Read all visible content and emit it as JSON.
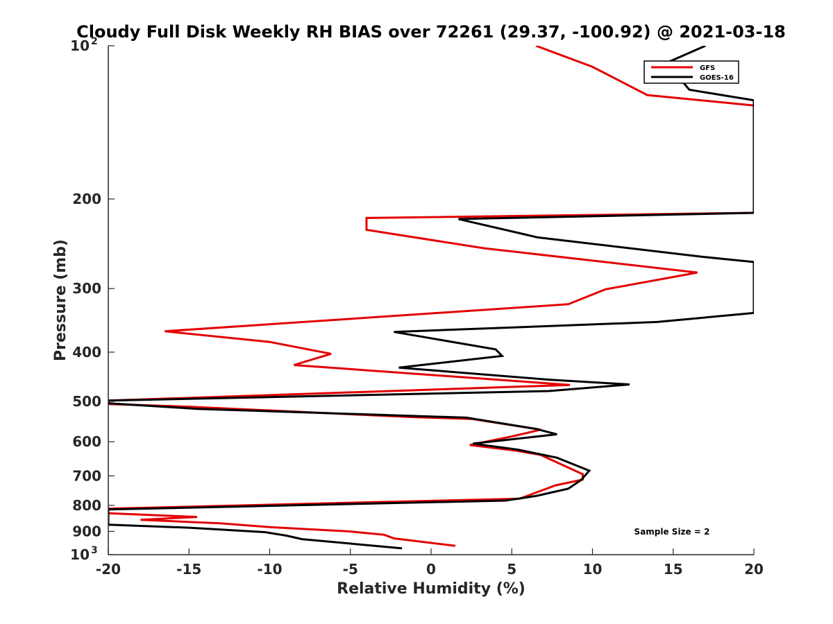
{
  "chart_data": {
    "type": "line",
    "title": "Cloudy Full Disk Weekly RH BIAS over 72261 (29.37, -100.92) @ 2021-03-18",
    "xlabel": "Relative Humidity (%)",
    "ylabel": "Pressure (mb)",
    "xlim": [
      -20,
      20
    ],
    "ylim": [
      100,
      1000
    ],
    "y_scale": "log",
    "y_reversed": true,
    "grid": false,
    "legend_position": "top-right",
    "x_ticks": [
      "-20",
      "-15",
      "-10",
      "-5",
      "0",
      "5",
      "10",
      "15",
      "20"
    ],
    "y_ticks": [
      {
        "value": 100,
        "base": "10",
        "exp": "2"
      },
      {
        "value": 200,
        "label": "200"
      },
      {
        "value": 300,
        "label": "300"
      },
      {
        "value": 400,
        "label": "400"
      },
      {
        "value": 500,
        "label": "500"
      },
      {
        "value": 600,
        "label": "600"
      },
      {
        "value": 700,
        "label": "700"
      },
      {
        "value": 800,
        "label": "800"
      },
      {
        "value": 900,
        "label": "900"
      },
      {
        "value": 1000,
        "base": "10",
        "exp": "3"
      }
    ],
    "annotation": "Sample Size = 2",
    "series": [
      {
        "name": "GFS",
        "color": "#e30000",
        "points": [
          [
            6.5,
            100
          ],
          [
            10,
            110
          ],
          [
            13.4,
            125
          ],
          [
            20,
            131
          ],
          [
            20,
            213
          ],
          [
            -4,
            218
          ],
          [
            -4,
            230
          ],
          [
            3.3,
            250
          ],
          [
            16.5,
            279
          ],
          [
            10.8,
            301
          ],
          [
            8.5,
            322
          ],
          [
            -16.5,
            364
          ],
          [
            -10,
            382
          ],
          [
            -6.2,
            403
          ],
          [
            -8.5,
            424
          ],
          [
            8.6,
            464
          ],
          [
            -20,
            498
          ],
          [
            -20,
            506
          ],
          [
            -15,
            512
          ],
          [
            -1,
            537
          ],
          [
            2.5,
            541
          ],
          [
            6.8,
            568
          ],
          [
            5.2,
            584
          ],
          [
            2.4,
            609
          ],
          [
            5.2,
            624
          ],
          [
            6.8,
            637
          ],
          [
            9.4,
            695
          ],
          [
            9.4,
            712
          ],
          [
            7.7,
            731
          ],
          [
            5.5,
            776
          ],
          [
            -20,
            812
          ],
          [
            -20,
            829
          ],
          [
            -14.5,
            843
          ],
          [
            -18,
            854
          ],
          [
            -13,
            868
          ],
          [
            -10,
            883
          ],
          [
            -5.1,
            900
          ],
          [
            -2.9,
            914
          ],
          [
            -2.3,
            929
          ],
          [
            1.5,
            961
          ]
        ]
      },
      {
        "name": "GOES-16",
        "color": "#000000",
        "points": [
          [
            17,
            100
          ],
          [
            14.6,
            108
          ],
          [
            16,
            122
          ],
          [
            20,
            128
          ],
          [
            20,
            213
          ],
          [
            1.7,
            219
          ],
          [
            6.6,
            238
          ],
          [
            16.9,
            260
          ],
          [
            20,
            266
          ],
          [
            20,
            335
          ],
          [
            14,
            349
          ],
          [
            -2.3,
            365
          ],
          [
            4,
            395
          ],
          [
            4.4,
            407
          ],
          [
            -2,
            429
          ],
          [
            7.3,
            453
          ],
          [
            12.3,
            463
          ],
          [
            7.3,
            477
          ],
          [
            -20,
            498
          ],
          [
            -20,
            504
          ],
          [
            -14.5,
            517
          ],
          [
            2.2,
            538
          ],
          [
            6.5,
            566
          ],
          [
            7.8,
            580
          ],
          [
            2.6,
            605
          ],
          [
            5.4,
            622
          ],
          [
            7.8,
            645
          ],
          [
            9.8,
            684
          ],
          [
            9.3,
            713
          ],
          [
            8.5,
            742
          ],
          [
            6.5,
            767
          ],
          [
            4.6,
            783
          ],
          [
            -20,
            815
          ],
          [
            -20,
            846
          ],
          [
            -20,
            873
          ],
          [
            -15,
            885
          ],
          [
            -10.3,
            903
          ],
          [
            -9,
            917
          ],
          [
            -8,
            932
          ],
          [
            -1.8,
            972
          ]
        ]
      }
    ]
  }
}
